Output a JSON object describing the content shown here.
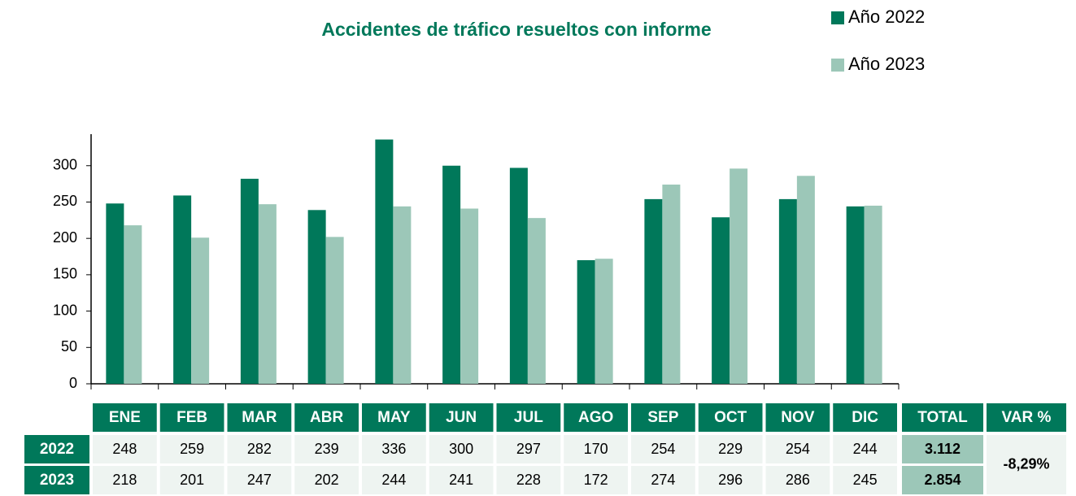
{
  "chart_data": {
    "type": "bar",
    "title": "Accidentes de tráfico resueltos con informe",
    "categories": [
      "ENE",
      "FEB",
      "MAR",
      "ABR",
      "MAY",
      "JUN",
      "JUL",
      "AGO",
      "SEP",
      "OCT",
      "NOV",
      "DIC"
    ],
    "series": [
      {
        "name": "Año 2022",
        "color": "#00785a",
        "values": [
          248,
          259,
          282,
          239,
          336,
          300,
          297,
          170,
          254,
          229,
          254,
          244
        ]
      },
      {
        "name": "Año 2023",
        "color": "#9cc7b8",
        "values": [
          218,
          201,
          247,
          202,
          244,
          241,
          228,
          172,
          274,
          296,
          286,
          245
        ]
      }
    ],
    "ylim": [
      0,
      340
    ],
    "yticks": [
      0,
      50,
      100,
      150,
      200,
      250,
      300
    ],
    "grid": false,
    "legend": "top-right",
    "table": {
      "row_labels": [
        "2022",
        "2023"
      ],
      "total_header": "TOTAL",
      "var_header": "VAR %",
      "totals": [
        "3.112",
        "2.854"
      ],
      "var": "-8,29%"
    }
  }
}
